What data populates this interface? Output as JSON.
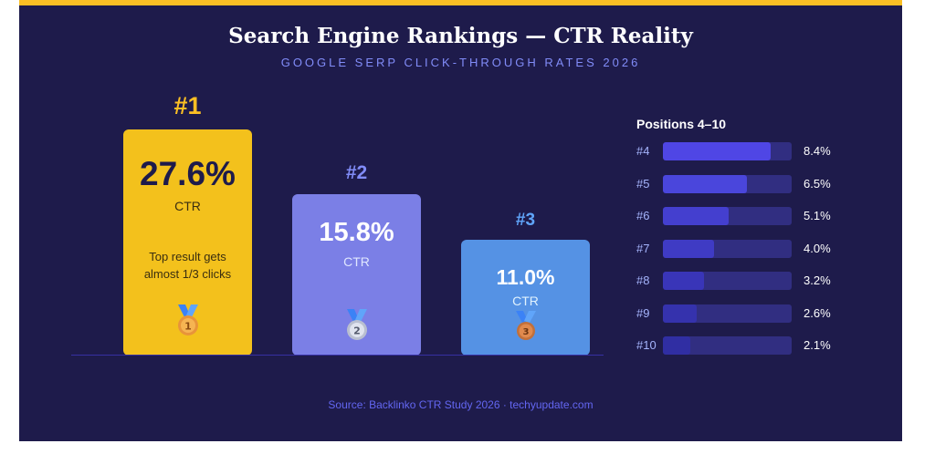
{
  "title": "Search Engine Rankings — CTR Reality",
  "subtitle": "GOOGLE SERP CLICK-THROUGH RATES 2026",
  "source": "Source: Backlinko CTR Study 2026 · techyupdate.com",
  "colors": {
    "background": "#1e1b4b",
    "accent_bar": "#fbbf24",
    "gold": "#f3c11c",
    "purple": "#7b7fe6",
    "blue": "#5592e4"
  },
  "top3": [
    {
      "rank": "#1",
      "value": "27.6%",
      "ctr_label": "CTR",
      "note_line1": "Top result gets",
      "note_line2": "almost 1/3 clicks",
      "medal_number": "1",
      "medal_icon": "gold-medal-icon"
    },
    {
      "rank": "#2",
      "value": "15.8%",
      "ctr_label": "CTR",
      "medal_number": "2",
      "medal_icon": "silver-medal-icon"
    },
    {
      "rank": "#3",
      "value": "11.0%",
      "ctr_label": "CTR",
      "medal_number": "3",
      "medal_icon": "bronze-medal-icon"
    }
  ],
  "positions_title": "Positions 4–10",
  "chart_data": {
    "type": "bar",
    "title": "Search Engine Rankings — CTR Reality",
    "subtitle": "GOOGLE SERP CLICK-THROUGH RATES 2026",
    "categories": [
      "#1",
      "#2",
      "#3",
      "#4",
      "#5",
      "#6",
      "#7",
      "#8",
      "#9",
      "#10"
    ],
    "values": [
      27.6,
      15.8,
      11.0,
      8.4,
      6.5,
      5.1,
      4.0,
      3.2,
      2.6,
      2.1
    ],
    "unit": "%",
    "positions": [
      {
        "label": "#4",
        "value": 8.4,
        "display": "8.4%"
      },
      {
        "label": "#5",
        "value": 6.5,
        "display": "6.5%"
      },
      {
        "label": "#6",
        "value": 5.1,
        "display": "5.1%"
      },
      {
        "label": "#7",
        "value": 4.0,
        "display": "4.0%"
      },
      {
        "label": "#8",
        "value": 3.2,
        "display": "3.2%"
      },
      {
        "label": "#9",
        "value": 2.6,
        "display": "2.6%"
      },
      {
        "label": "#10",
        "value": 2.1,
        "display": "2.1%"
      }
    ],
    "positions_scale_max": 10
  }
}
